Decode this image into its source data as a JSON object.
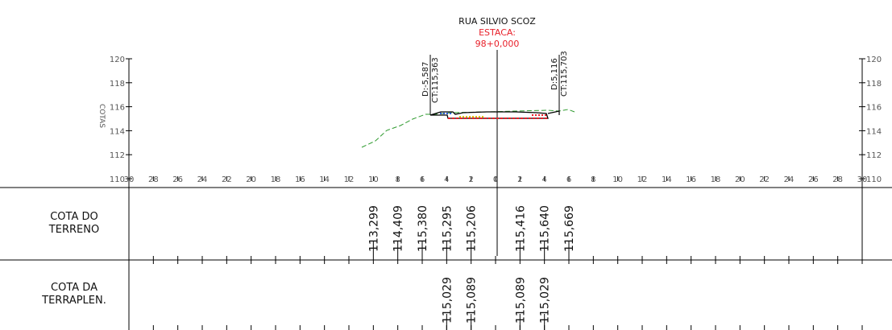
{
  "header": {
    "road_name": "RUA SILVIO SCOZ",
    "station_label": "ESTACA:",
    "station_value": "98+0,000"
  },
  "axes": {
    "y_label_left": "COTAS",
    "y_ticks": [
      110,
      112,
      114,
      116,
      118,
      120
    ],
    "x_ticks": [
      30,
      28,
      26,
      24,
      22,
      20,
      18,
      16,
      14,
      12,
      10,
      8,
      6,
      4,
      2,
      0,
      2,
      4,
      6,
      8,
      10,
      12,
      14,
      16,
      18,
      20,
      22,
      24,
      26,
      28,
      30
    ],
    "x_range": [
      -30,
      30
    ],
    "y_range": [
      110,
      120
    ]
  },
  "offsets": {
    "left_d": "D:-5,587",
    "left_ct": "CT:115,363",
    "right_d": "D:5,116",
    "right_ct": "CT:115,703"
  },
  "table": {
    "row1_title_line1": "COTA  DO",
    "row1_title_line2": "TERRENO",
    "row2_title_line1": "COTA  DA",
    "row2_title_line2": "TERRAPLEN.",
    "terrain": [
      {
        "x": -10,
        "value": "113,299"
      },
      {
        "x": -8,
        "value": "114,409"
      },
      {
        "x": -6,
        "value": "115,380"
      },
      {
        "x": -4,
        "value": "115,295"
      },
      {
        "x": -2,
        "value": "115,206"
      },
      {
        "x": 2,
        "value": "115,416"
      },
      {
        "x": 4,
        "value": "115,640"
      },
      {
        "x": 6,
        "value": "115,669"
      }
    ],
    "grading": [
      {
        "x": -4,
        "value": "115,029"
      },
      {
        "x": -2,
        "value": "115,089"
      },
      {
        "x": 2,
        "value": "115,089"
      },
      {
        "x": 4,
        "value": "115,029"
      }
    ]
  },
  "colors": {
    "station": "#e8202a",
    "terrain_line": "#2e9a2e",
    "hatch_red": "#e8202a",
    "hatch_blue": "#2a5ad8",
    "hatch_yellow": "#e0c000"
  }
}
